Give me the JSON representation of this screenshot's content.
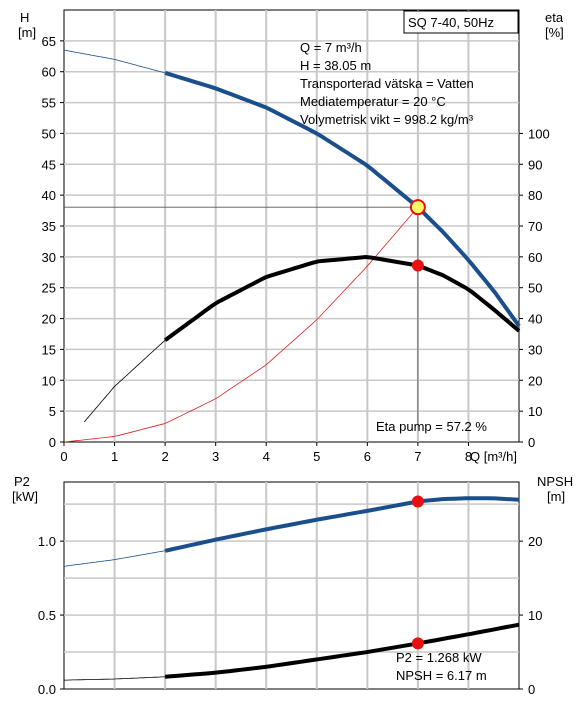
{
  "title": "SQ 7-40, 50Hz",
  "info_lines": [
    "Q = 7 m³/h",
    "H = 38.05 m",
    "Transporterad vätska = Vatten",
    "Mediatemperatur = 20 °C",
    "Volymetrisk vikt = 998.2 kg/m³"
  ],
  "eta_label": "Eta pump = 57.2 %",
  "lower_labels": [
    "P2 = 1.268 kW",
    "NPSH = 6.17 m"
  ],
  "colors": {
    "head": "#1b4f8c",
    "eta": "#000000",
    "system": "#e02020",
    "marker": "#e81010",
    "grid": "#c8c8c8",
    "duty_fill": "#ffff66"
  },
  "chart_data": [
    {
      "type": "line",
      "xlabel": "Q [m³/h]",
      "xlim": [
        0,
        9
      ],
      "x_ticks": [
        "0",
        "1",
        "2",
        "3",
        "4",
        "5",
        "6",
        "7",
        "8"
      ],
      "y_left_label": [
        "H",
        "[m]"
      ],
      "y_left_lim": [
        0,
        70
      ],
      "y_left_ticks": [
        "0",
        "5",
        "10",
        "15",
        "20",
        "25",
        "30",
        "35",
        "40",
        "45",
        "50",
        "55",
        "60",
        "65"
      ],
      "y_right_label": [
        "eta",
        "[%]"
      ],
      "y_right_lim": [
        0,
        140
      ],
      "y_right_ticks": [
        "0",
        "10",
        "20",
        "30",
        "40",
        "50",
        "60",
        "70",
        "80",
        "90",
        "100"
      ],
      "grid": true,
      "series": [
        {
          "id": "head-curve",
          "axis": "left",
          "x": [
            0,
            1,
            2,
            3,
            4,
            5,
            6,
            7,
            7.5,
            8,
            8.5,
            9
          ],
          "y": [
            63.5,
            62,
            59.8,
            57.3,
            54.2,
            50,
            44.8,
            38.05,
            34,
            29.5,
            24.5,
            18.8
          ]
        },
        {
          "id": "eta-curve",
          "axis": "right",
          "x": [
            0.4,
            1,
            2,
            3,
            4,
            5,
            6,
            7,
            7.5,
            8,
            8.5,
            9
          ],
          "y": [
            6.5,
            18,
            33,
            45,
            53.5,
            58.5,
            60,
            57.2,
            54,
            49.5,
            43,
            36
          ]
        },
        {
          "id": "system-curve",
          "axis": "left",
          "x": [
            0,
            1,
            2,
            3,
            4,
            5,
            6,
            7
          ],
          "y": [
            0,
            0.9,
            3,
            7,
            12.5,
            19.8,
            28.5,
            38.05
          ]
        }
      ],
      "duty_point": {
        "x": 7,
        "head": 38.05,
        "eta": 57.2
      }
    },
    {
      "type": "line",
      "xlim": [
        0,
        9
      ],
      "y_left_label": [
        "P2",
        "[kW]"
      ],
      "y_left_lim": [
        0,
        1.4
      ],
      "y_left_ticks": [
        "0.0",
        "0.5",
        "1.0"
      ],
      "y_right_label": [
        "NPSH",
        "[m]"
      ],
      "y_right_lim": [
        0,
        28
      ],
      "y_right_ticks": [
        "0",
        "10",
        "20"
      ],
      "grid": true,
      "series": [
        {
          "id": "p2-curve",
          "axis": "left",
          "x": [
            0,
            1,
            2,
            3,
            4,
            5,
            6,
            7,
            7.5,
            8,
            8.5,
            9
          ],
          "y": [
            0.83,
            0.875,
            0.935,
            1.01,
            1.08,
            1.145,
            1.205,
            1.268,
            1.285,
            1.29,
            1.29,
            1.28
          ]
        },
        {
          "id": "npsh-curve",
          "axis": "right",
          "x": [
            0,
            1,
            2,
            3,
            4,
            5,
            6,
            7,
            8,
            9
          ],
          "y": [
            1.2,
            1.35,
            1.65,
            2.2,
            3,
            4,
            5,
            6.17,
            7.4,
            8.7
          ]
        }
      ],
      "duty_point": {
        "x": 7,
        "p2": 1.268,
        "npsh": 6.17
      }
    }
  ]
}
